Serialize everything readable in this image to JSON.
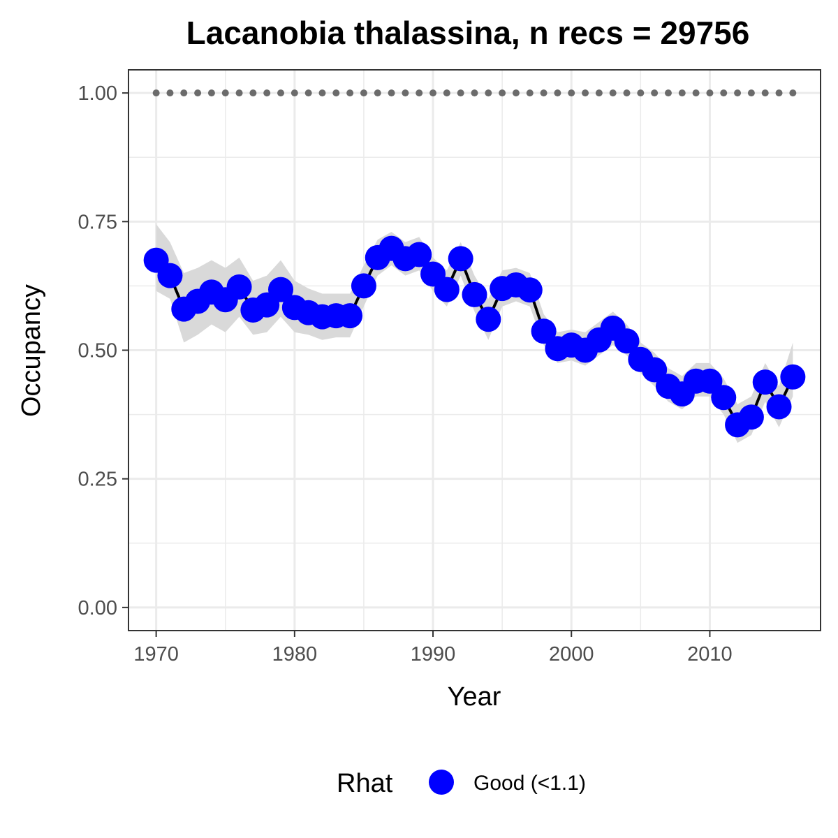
{
  "chart_data": {
    "type": "line",
    "title": "Lacanobia thalassina, n recs = 29756",
    "xlabel": "Year",
    "ylabel": "Occupancy",
    "xlim": [
      1968,
      2018
    ],
    "ylim": [
      -0.045,
      1.045
    ],
    "x_ticks": [
      1970,
      1980,
      1990,
      2000,
      2010
    ],
    "y_ticks": [
      0.0,
      0.25,
      0.5,
      0.75,
      1.0
    ],
    "y_tick_labels": [
      "0.00",
      "0.25",
      "0.50",
      "0.75",
      "1.00"
    ],
    "grid": true,
    "colors": {
      "points": "#0000ff",
      "line": "#000000",
      "ribbon": "#d9d9d9",
      "reference": "#6b6b6b",
      "grid": "#ebebeb",
      "panel_border": "#333333"
    },
    "years": [
      1970,
      1971,
      1972,
      1973,
      1974,
      1975,
      1976,
      1977,
      1978,
      1979,
      1980,
      1981,
      1982,
      1983,
      1984,
      1985,
      1986,
      1987,
      1988,
      1989,
      1990,
      1991,
      1992,
      1993,
      1994,
      1995,
      1996,
      1997,
      1998,
      1999,
      2000,
      2001,
      2002,
      2003,
      2004,
      2005,
      2006,
      2007,
      2008,
      2009,
      2010,
      2011,
      2012,
      2013,
      2014,
      2015,
      2016
    ],
    "series": [
      {
        "name": "Occupancy",
        "values": [
          0.675,
          0.645,
          0.58,
          0.595,
          0.613,
          0.598,
          0.623,
          0.578,
          0.588,
          0.618,
          0.583,
          0.573,
          0.565,
          0.567,
          0.567,
          0.625,
          0.68,
          0.698,
          0.678,
          0.686,
          0.648,
          0.618,
          0.678,
          0.608,
          0.56,
          0.62,
          0.627,
          0.617,
          0.537,
          0.503,
          0.51,
          0.5,
          0.52,
          0.543,
          0.518,
          0.482,
          0.462,
          0.43,
          0.415,
          0.44,
          0.44,
          0.408,
          0.355,
          0.37,
          0.438,
          0.39,
          0.448
        ]
      }
    ],
    "ribbon_lower": [
      0.615,
      0.6,
      0.515,
      0.53,
      0.55,
      0.535,
      0.565,
      0.53,
      0.535,
      0.565,
      0.535,
      0.53,
      0.52,
      0.525,
      0.525,
      0.585,
      0.645,
      0.665,
      0.645,
      0.655,
      0.615,
      0.585,
      0.645,
      0.575,
      0.52,
      0.585,
      0.595,
      0.585,
      0.51,
      0.475,
      0.48,
      0.47,
      0.49,
      0.51,
      0.49,
      0.455,
      0.43,
      0.4,
      0.385,
      0.41,
      0.41,
      0.375,
      0.32,
      0.335,
      0.4,
      0.35,
      0.41
    ],
    "ribbon_upper": [
      0.745,
      0.71,
      0.65,
      0.66,
      0.675,
      0.66,
      0.68,
      0.635,
      0.645,
      0.675,
      0.635,
      0.62,
      0.61,
      0.61,
      0.61,
      0.665,
      0.715,
      0.73,
      0.71,
      0.72,
      0.68,
      0.655,
      0.71,
      0.645,
      0.6,
      0.655,
      0.66,
      0.65,
      0.57,
      0.535,
      0.54,
      0.535,
      0.555,
      0.575,
      0.55,
      0.515,
      0.495,
      0.465,
      0.45,
      0.475,
      0.475,
      0.445,
      0.395,
      0.41,
      0.475,
      0.43,
      0.515
    ],
    "reference_line": {
      "value": 1.0,
      "style": "dotted"
    },
    "legend": {
      "title": "Rhat",
      "entries": [
        "Good (<1.1)"
      ],
      "position": "bottom"
    }
  }
}
